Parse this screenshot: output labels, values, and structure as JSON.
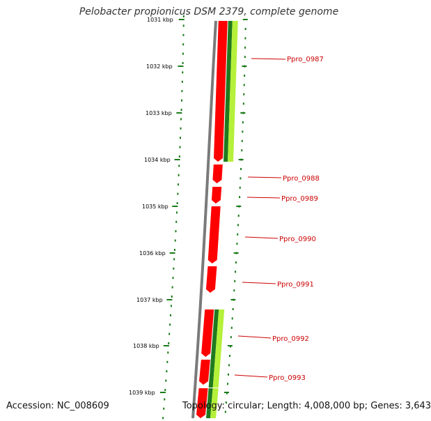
{
  "title": "Pelobacter propionicus DSM 2379, complete genome",
  "accession": "Accession: NC_008609",
  "topology": "Topology: circular; Length: 4,008,000 bp; Genes: 3,643",
  "colors": {
    "cds_red": "#ff0000",
    "backbone_gray": "#7a7a7a",
    "gc_green_dark": "#1f7a1f",
    "gc_green_light": "#b5f03a",
    "tick_green": "#1a7a1a",
    "label_red": "#cc0000"
  },
  "kbp_ticks": [
    "1031 kbp",
    "1032 kbp",
    "1033 kbp",
    "1034 kbp",
    "1035 kbp",
    "1036 kbp",
    "1037 kbp",
    "1038 kbp",
    "1039 kbp"
  ],
  "genes": [
    "Ppro_0987",
    "Ppro_0988",
    "Ppro_0989",
    "Ppro_0990",
    "Ppro_0991",
    "Ppro_0992",
    "Ppro_0993"
  ]
}
